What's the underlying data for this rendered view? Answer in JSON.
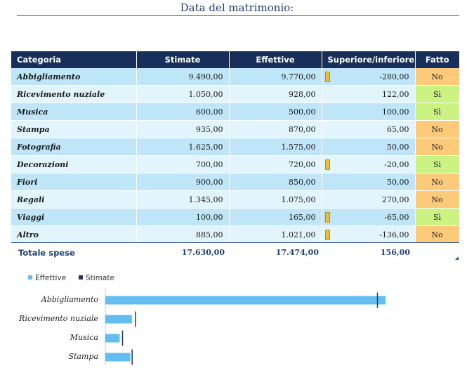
{
  "title": "Data del matrimonio:",
  "table": {
    "headers": {
      "category": "Categoria",
      "estimated": "Stimate",
      "actual": "Effettive",
      "difference": "Superiore/inferiore",
      "done": "Fatto"
    },
    "rows": [
      {
        "category": "Abbigliamento",
        "estimated": "9.490,00",
        "actual": "9.770,00",
        "difference": "-280,00",
        "warning": true,
        "done": "No"
      },
      {
        "category": "Ricevimento nuziale",
        "estimated": "1.050,00",
        "actual": "928,00",
        "difference": "122,00",
        "warning": false,
        "done": "Sì"
      },
      {
        "category": "Musica",
        "estimated": "600,00",
        "actual": "500,00",
        "difference": "100,00",
        "warning": false,
        "done": "Sì"
      },
      {
        "category": "Stampa",
        "estimated": "935,00",
        "actual": "870,00",
        "difference": "65,00",
        "warning": false,
        "done": "No"
      },
      {
        "category": "Fotografia",
        "estimated": "1.625,00",
        "actual": "1.575,00",
        "difference": "50,00",
        "warning": false,
        "done": "No"
      },
      {
        "category": "Decorazioni",
        "estimated": "700,00",
        "actual": "720,00",
        "difference": "-20,00",
        "warning": true,
        "done": "Sì"
      },
      {
        "category": "Fiori",
        "estimated": "900,00",
        "actual": "850,00",
        "difference": "50,00",
        "warning": false,
        "done": "No"
      },
      {
        "category": "Regali",
        "estimated": "1.345,00",
        "actual": "1.075,00",
        "difference": "270,00",
        "warning": false,
        "done": "No"
      },
      {
        "category": "Viaggi",
        "estimated": "100,00",
        "actual": "165,00",
        "difference": "-65,00",
        "warning": true,
        "done": "Sì"
      },
      {
        "category": "Altro",
        "estimated": "885,00",
        "actual": "1.021,00",
        "difference": "-136,00",
        "warning": true,
        "done": "No"
      }
    ],
    "totals": {
      "label": "Totale spese",
      "estimated": "17.630,00",
      "actual": "17.474,00",
      "difference": "156,00"
    }
  },
  "colors": {
    "header": "#172f5a",
    "actual_bar": "#62bdf0",
    "estimated_marker": "#1f3864",
    "done_yes": "#ccf382",
    "done_no": "#fdca7a",
    "warning": "#e9c23a"
  },
  "chart_data": {
    "type": "bar",
    "orientation": "horizontal",
    "categories": [
      "Abbigliamento",
      "Ricevimento nuziale",
      "Musica",
      "Stampa"
    ],
    "series": [
      {
        "name": "Effettive",
        "values": [
          9770,
          928,
          500,
          870
        ]
      },
      {
        "name": "Stimate",
        "values": [
          9490,
          1050,
          600,
          935
        ]
      }
    ],
    "legend": "top-left",
    "xlim": [
      0,
      12000
    ]
  }
}
